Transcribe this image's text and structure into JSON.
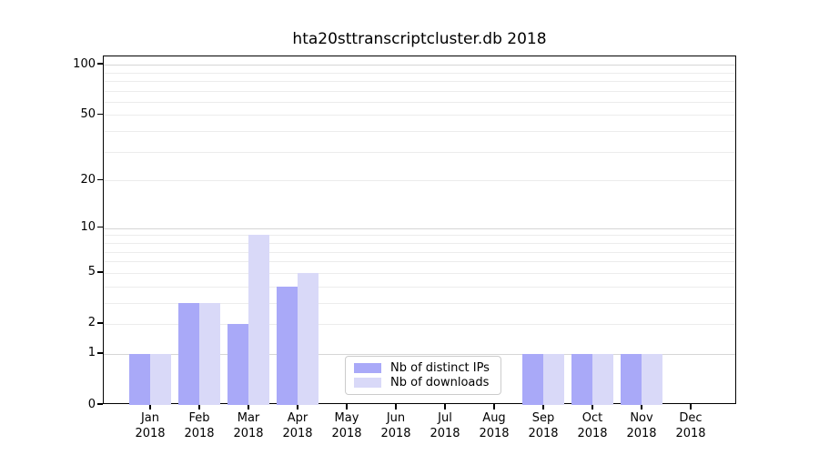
{
  "chart_data": {
    "type": "bar",
    "title": "hta20sttranscriptcluster.db 2018",
    "year": "2018",
    "months": [
      "Jan",
      "Feb",
      "Mar",
      "Apr",
      "May",
      "Jun",
      "Jul",
      "Aug",
      "Sep",
      "Oct",
      "Nov",
      "Dec"
    ],
    "series": [
      {
        "name": "Nb of distinct IPs",
        "color": "#a9a9f8",
        "values": [
          1,
          3,
          2,
          4,
          0,
          0,
          0,
          0,
          1,
          1,
          1,
          0
        ]
      },
      {
        "name": "Nb of downloads",
        "color": "#d9d9f8",
        "values": [
          1,
          3,
          9,
          5,
          0,
          0,
          0,
          0,
          1,
          1,
          1,
          0
        ]
      }
    ],
    "xlabel": "",
    "ylabel": "",
    "yscale": "log1p",
    "ylim": [
      0,
      112
    ],
    "y_ticks": [
      0,
      1,
      2,
      5,
      10,
      20,
      50,
      100
    ],
    "y_major_gridlines": [
      1,
      10,
      100
    ],
    "y_minor_gridlines": [
      2,
      3,
      4,
      5,
      6,
      7,
      8,
      9,
      20,
      30,
      40,
      50,
      60,
      70,
      80,
      90
    ],
    "grid": true,
    "legend_position": "lower-center"
  },
  "colors": {
    "background": "#ffffff",
    "spine": "#000000",
    "grid_major": "#d6d6d6",
    "grid_minor": "#ececec",
    "legend_border": "#cccccc",
    "text": "#000000"
  }
}
